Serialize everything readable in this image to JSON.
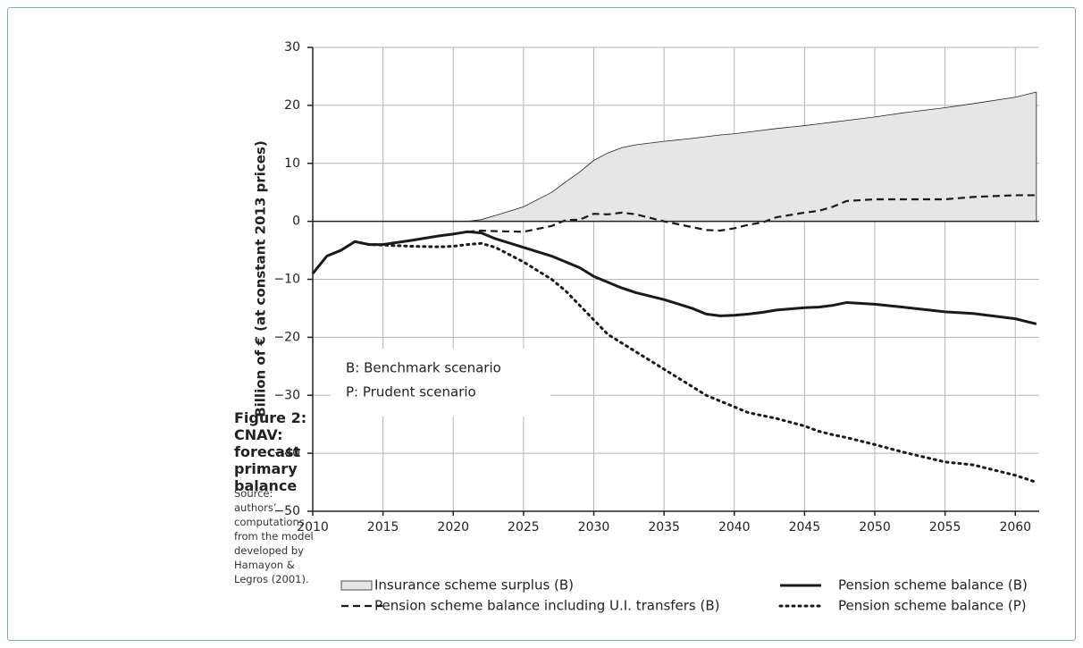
{
  "chart_data": {
    "type": "line",
    "title": "Figure 2: CNAV: forecast primary balance",
    "source": "Source: authors’ computations from the model developed by Hamayon & Legros (2001).",
    "y_label": "Billion of € (at constant 2013 prices)",
    "annotations": [
      "B: Benchmark scenario",
      "P: Prudent scenario"
    ],
    "x": [
      2010,
      2011,
      2012,
      2013,
      2014,
      2015,
      2017,
      2019,
      2020,
      2021,
      2022,
      2023,
      2025,
      2027,
      2028,
      2029,
      2030,
      2031,
      2032,
      2033,
      2035,
      2037,
      2038,
      2039,
      2040,
      2041,
      2042,
      2043,
      2045,
      2046,
      2047,
      2048,
      2050,
      2052,
      2055,
      2057,
      2060,
      2061.5
    ],
    "xlim": [
      2010,
      2061.7
    ],
    "xticks": [
      2010,
      2015,
      2020,
      2025,
      2030,
      2035,
      2040,
      2045,
      2050,
      2055,
      2060
    ],
    "ylim": [
      -50,
      30
    ],
    "yticks": [
      30,
      20,
      10,
      0,
      {
        "value": -10,
        "label": "−10"
      },
      {
        "value": -20,
        "label": "−20"
      },
      {
        "value": -30,
        "label": "−30"
      },
      {
        "value": -40,
        "label": "−40"
      },
      {
        "value": -50,
        "label": "−50"
      }
    ],
    "grid": true,
    "series": [
      {
        "name": "Insurance scheme surplus (B)",
        "style": "area",
        "color": "#e6e6e6",
        "values": [
          null,
          null,
          null,
          null,
          null,
          null,
          null,
          null,
          null,
          0,
          0.3,
          1,
          2.5,
          5,
          6.8,
          8.5,
          10.5,
          11.8,
          12.7,
          13.2,
          13.8,
          14.3,
          14.6,
          14.9,
          15.1,
          15.4,
          15.7,
          16,
          16.5,
          16.8,
          17.1,
          17.4,
          18,
          18.7,
          19.6,
          20.3,
          21.4,
          22.3
        ]
      },
      {
        "name": "Pension scheme balance (B)",
        "style": "solid",
        "color": "#1a1a1a",
        "values": [
          -9,
          -6,
          -5,
          -3.5,
          -4,
          -4,
          -3.3,
          -2.5,
          -2.2,
          -1.8,
          -2,
          -3,
          -4.5,
          -6,
          -7,
          -8,
          -9.5,
          -10.5,
          -11.5,
          -12.3,
          -13.5,
          -15,
          -16,
          -16.3,
          -16.2,
          -16,
          -15.7,
          -15.3,
          -14.9,
          -14.8,
          -14.5,
          -14,
          -14.3,
          -14.8,
          -15.6,
          -15.9,
          -16.8,
          -17.7
        ]
      },
      {
        "name": "Pension scheme balance including U.I. transfers (B)",
        "style": "dashed",
        "color": "#1a1a1a",
        "values": [
          null,
          null,
          null,
          null,
          null,
          null,
          null,
          null,
          null,
          -1.8,
          -1.6,
          -1.7,
          -1.8,
          -0.8,
          0.2,
          0.3,
          1.3,
          1.2,
          1.5,
          1.2,
          0,
          -1,
          -1.5,
          -1.6,
          -1.2,
          -0.6,
          -0.2,
          0.7,
          1.5,
          1.8,
          2.5,
          3.5,
          3.8,
          3.8,
          3.8,
          4.2,
          4.5,
          4.5
        ]
      },
      {
        "name": "Pension scheme balance (P)",
        "style": "dotted",
        "color": "#1a1a1a",
        "values": [
          null,
          null,
          null,
          -3.5,
          -4,
          -4.1,
          -4.3,
          -4.4,
          -4.3,
          -4,
          -3.8,
          -4.5,
          -7,
          -10,
          -12,
          -14.5,
          -17,
          -19.5,
          -21,
          -22.5,
          -25.5,
          -28.5,
          -30,
          -31,
          -32,
          -33,
          -33.5,
          -34,
          -35.3,
          -36.2,
          -36.8,
          -37.3,
          -38.5,
          -39.8,
          -41.5,
          -42,
          -43.8,
          -45
        ]
      }
    ]
  }
}
